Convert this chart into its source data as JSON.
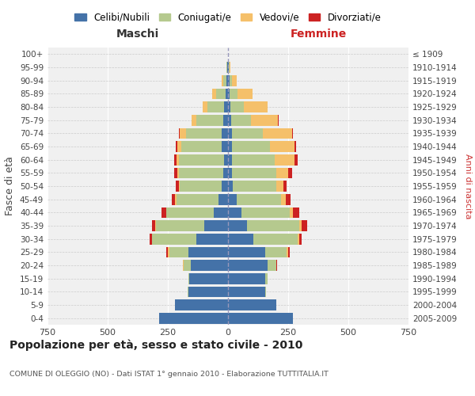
{
  "age_groups_bottom_to_top": [
    "0-4",
    "5-9",
    "10-14",
    "15-19",
    "20-24",
    "25-29",
    "30-34",
    "35-39",
    "40-44",
    "45-49",
    "50-54",
    "55-59",
    "60-64",
    "65-69",
    "70-74",
    "75-79",
    "80-84",
    "85-89",
    "90-94",
    "95-99",
    "100+"
  ],
  "birth_years_bottom_to_top": [
    "2005-2009",
    "2000-2004",
    "1995-1999",
    "1990-1994",
    "1985-1989",
    "1980-1984",
    "1975-1979",
    "1970-1974",
    "1965-1969",
    "1960-1964",
    "1955-1959",
    "1950-1954",
    "1945-1949",
    "1940-1944",
    "1935-1939",
    "1930-1934",
    "1925-1929",
    "1920-1924",
    "1915-1919",
    "1910-1914",
    "≤ 1909"
  ],
  "maschi": {
    "celibi": [
      285,
      220,
      165,
      160,
      155,
      165,
      130,
      100,
      60,
      40,
      25,
      20,
      18,
      25,
      25,
      20,
      15,
      10,
      5,
      2,
      0
    ],
    "coniugati": [
      0,
      0,
      2,
      5,
      30,
      80,
      185,
      200,
      195,
      175,
      175,
      185,
      185,
      170,
      150,
      110,
      70,
      40,
      15,
      3,
      0
    ],
    "vedovi": [
      0,
      0,
      0,
      0,
      2,
      5,
      2,
      2,
      2,
      5,
      5,
      5,
      10,
      15,
      25,
      20,
      20,
      15,
      5,
      2,
      0
    ],
    "divorziati": [
      0,
      0,
      0,
      0,
      2,
      5,
      8,
      15,
      18,
      15,
      12,
      15,
      12,
      8,
      5,
      0,
      0,
      0,
      0,
      0,
      0
    ]
  },
  "femmine": {
    "nubili": [
      270,
      200,
      155,
      155,
      165,
      155,
      105,
      80,
      55,
      35,
      20,
      15,
      15,
      15,
      15,
      12,
      10,
      8,
      5,
      2,
      0
    ],
    "coniugate": [
      0,
      0,
      2,
      8,
      35,
      90,
      185,
      215,
      200,
      185,
      180,
      185,
      180,
      160,
      130,
      85,
      55,
      30,
      10,
      3,
      0
    ],
    "vedove": [
      0,
      0,
      0,
      0,
      2,
      5,
      5,
      10,
      15,
      20,
      30,
      50,
      80,
      100,
      120,
      110,
      100,
      65,
      20,
      5,
      0
    ],
    "divorziate": [
      0,
      0,
      0,
      0,
      2,
      5,
      10,
      25,
      25,
      20,
      12,
      15,
      15,
      8,
      5,
      2,
      0,
      0,
      0,
      0,
      0
    ]
  },
  "colors": {
    "celibi": "#4472a8",
    "coniugati": "#b5c98e",
    "vedovi": "#f5c06a",
    "divorziati": "#cc2222"
  },
  "xlim": 750,
  "title": "Popolazione per età, sesso e stato civile - 2010",
  "subtitle": "COMUNE DI OLEGGIO (NO) - Dati ISTAT 1° gennaio 2010 - Elaborazione TUTTITALIA.IT",
  "ylabel_left": "Fasce di età",
  "ylabel_right": "Anni di nascita",
  "xlabel_left": "Maschi",
  "xlabel_right": "Femmine",
  "legend_labels": [
    "Celibi/Nubili",
    "Coniugati/e",
    "Vedovi/e",
    "Divorziati/e"
  ],
  "background_color": "#ffffff",
  "plot_bg_color": "#f0f0f0"
}
